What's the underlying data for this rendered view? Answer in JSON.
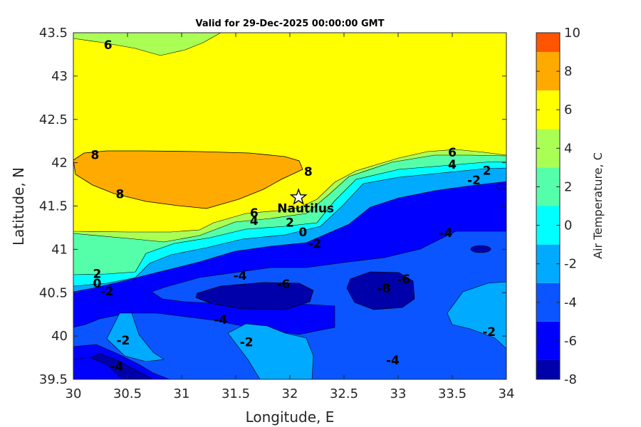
{
  "chart_data": {
    "type": "heatmap",
    "title": "Valid for 29-Dec-2025 00:00:00 GMT",
    "xlabel": "Longitude, E",
    "ylabel": "Latitude, N",
    "xlim": [
      30,
      34
    ],
    "ylim": [
      39.5,
      43.5
    ],
    "x_ticks": [
      "30",
      "30.5",
      "31",
      "31.5",
      "32",
      "32.5",
      "33",
      "33.5",
      "34"
    ],
    "y_ticks": [
      "39.5",
      "40",
      "40.5",
      "41",
      "41.5",
      "42",
      "42.5",
      "43",
      "43.5"
    ],
    "colorbar": {
      "label": "Air Temperature, C",
      "range": [
        -8,
        10
      ],
      "ticks": [
        "-8",
        "-6",
        "-4",
        "-2",
        "0",
        "2",
        "4",
        "6",
        "8",
        "10"
      ],
      "bins": [
        {
          "from": -8,
          "to": -7,
          "color": "#0000aa"
        },
        {
          "from": -7,
          "to": -5,
          "color": "#0000ff"
        },
        {
          "from": -5,
          "to": -3,
          "color": "#0a55ff"
        },
        {
          "from": -3,
          "to": -1,
          "color": "#00aaff"
        },
        {
          "from": -1,
          "to": 1,
          "color": "#00ffff"
        },
        {
          "from": 1,
          "to": 3,
          "color": "#55ffaa"
        },
        {
          "from": 3,
          "to": 5,
          "color": "#aaff55"
        },
        {
          "from": 5,
          "to": 7,
          "color": "#ffff00"
        },
        {
          "from": 7,
          "to": 9,
          "color": "#ffaa00"
        },
        {
          "from": 9,
          "to": 10,
          "color": "#ff5500"
        }
      ]
    },
    "station": {
      "name": "Nautilus",
      "lon": 32.08,
      "lat": 41.6
    },
    "contour_labels": [
      {
        "text": "6",
        "lon": 30.32,
        "lat": 43.36
      },
      {
        "text": "8",
        "lon": 30.2,
        "lat": 42.09
      },
      {
        "text": "8",
        "lon": 30.43,
        "lat": 41.64
      },
      {
        "text": "8",
        "lon": 32.17,
        "lat": 41.9
      },
      {
        "text": "6",
        "lon": 33.5,
        "lat": 42.12
      },
      {
        "text": "4",
        "lon": 33.5,
        "lat": 41.98
      },
      {
        "text": "2",
        "lon": 33.82,
        "lat": 41.91
      },
      {
        "text": "-2",
        "lon": 33.7,
        "lat": 41.8
      },
      {
        "text": "6",
        "lon": 31.67,
        "lat": 41.42
      },
      {
        "text": "4",
        "lon": 31.67,
        "lat": 41.33
      },
      {
        "text": "2",
        "lon": 32.0,
        "lat": 41.31
      },
      {
        "text": "0",
        "lon": 32.12,
        "lat": 41.2
      },
      {
        "text": "-2",
        "lon": 32.23,
        "lat": 41.07
      },
      {
        "text": "-4",
        "lon": 33.44,
        "lat": 41.19
      },
      {
        "text": "2",
        "lon": 30.22,
        "lat": 40.72
      },
      {
        "text": "0",
        "lon": 30.22,
        "lat": 40.61
      },
      {
        "text": "-2",
        "lon": 30.31,
        "lat": 40.52
      },
      {
        "text": "-4",
        "lon": 31.54,
        "lat": 40.7
      },
      {
        "text": "-6",
        "lon": 31.94,
        "lat": 40.6
      },
      {
        "text": "-6",
        "lon": 33.05,
        "lat": 40.66
      },
      {
        "text": "-8",
        "lon": 32.87,
        "lat": 40.55
      },
      {
        "text": "-4",
        "lon": 31.36,
        "lat": 40.19
      },
      {
        "text": "-2",
        "lon": 30.46,
        "lat": 39.95
      },
      {
        "text": "-2",
        "lon": 31.6,
        "lat": 39.93
      },
      {
        "text": "-4",
        "lon": 30.4,
        "lat": 39.65
      },
      {
        "text": "-4",
        "lon": 32.95,
        "lat": 39.72
      },
      {
        "text": "-2",
        "lon": 33.84,
        "lat": 40.05
      }
    ]
  }
}
